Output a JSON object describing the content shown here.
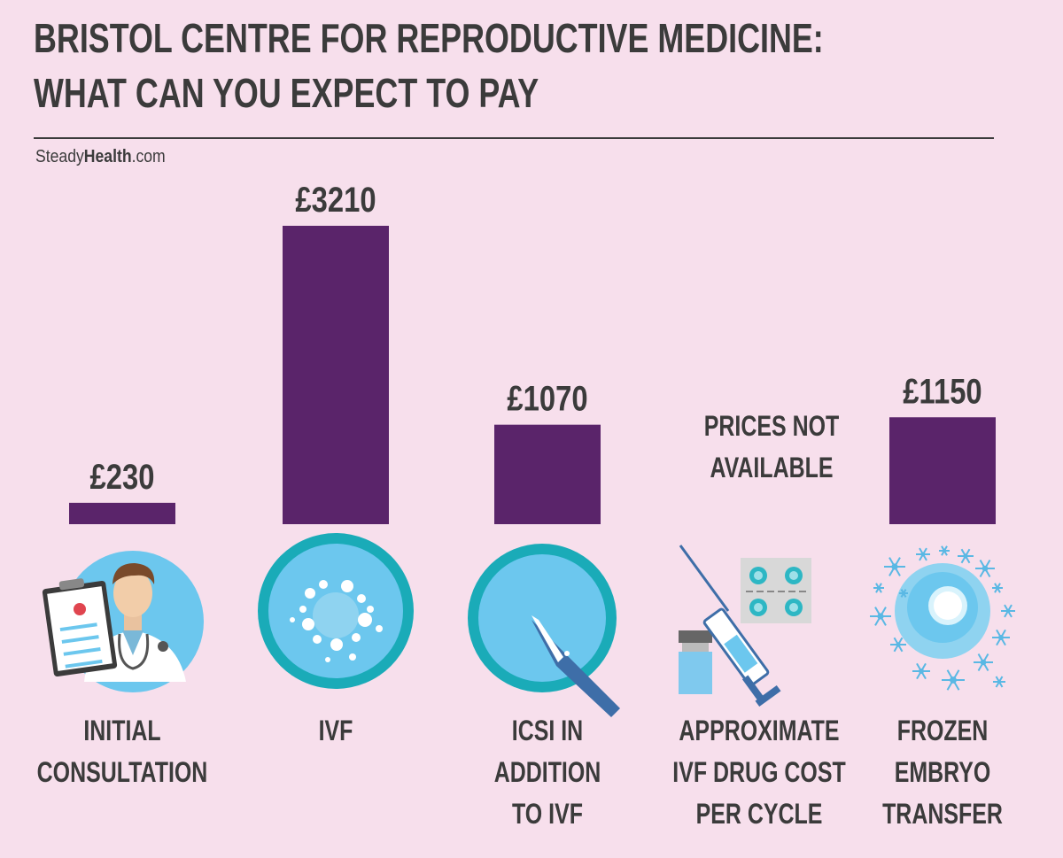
{
  "header": {
    "title_line1": "BRISTOL CENTRE FOR REPRODUCTIVE MEDICINE:",
    "title_line2": "WHAT CAN YOU EXPECT TO PAY",
    "brand_light": "Steady",
    "brand_bold": "Health",
    "brand_suffix": ".com"
  },
  "colors": {
    "background": "#f7dfec",
    "bar": "#5a246a",
    "text": "#3b3b3b",
    "icon_teal": "#1aabb8",
    "icon_light_blue": "#6cc7ee"
  },
  "chart_data": {
    "type": "bar",
    "categories": [
      [
        "INITIAL",
        "CONSULTATION"
      ],
      [
        "IVF"
      ],
      [
        "ICSI IN",
        "ADDITION",
        "TO IVF"
      ],
      [
        "APPROXIMATE",
        "IVF DRUG COST",
        "PER CYCLE"
      ],
      [
        "FROZEN",
        "EMBRYO",
        "TRANSFER"
      ]
    ],
    "values": [
      230,
      3210,
      1070,
      null,
      1150
    ],
    "value_labels": [
      "£230",
      "£3210",
      "£1070",
      null,
      "£1150"
    ],
    "unavailable_labels": [
      null,
      null,
      null,
      [
        "PRICES NOT",
        "AVAILABLE"
      ],
      null
    ],
    "icons": [
      "doctor-icon",
      "ivf-cell-icon",
      "icsi-injection-icon",
      "syringe-pills-icon",
      "frozen-embryo-icon"
    ],
    "ylim": [
      0,
      3210
    ]
  }
}
